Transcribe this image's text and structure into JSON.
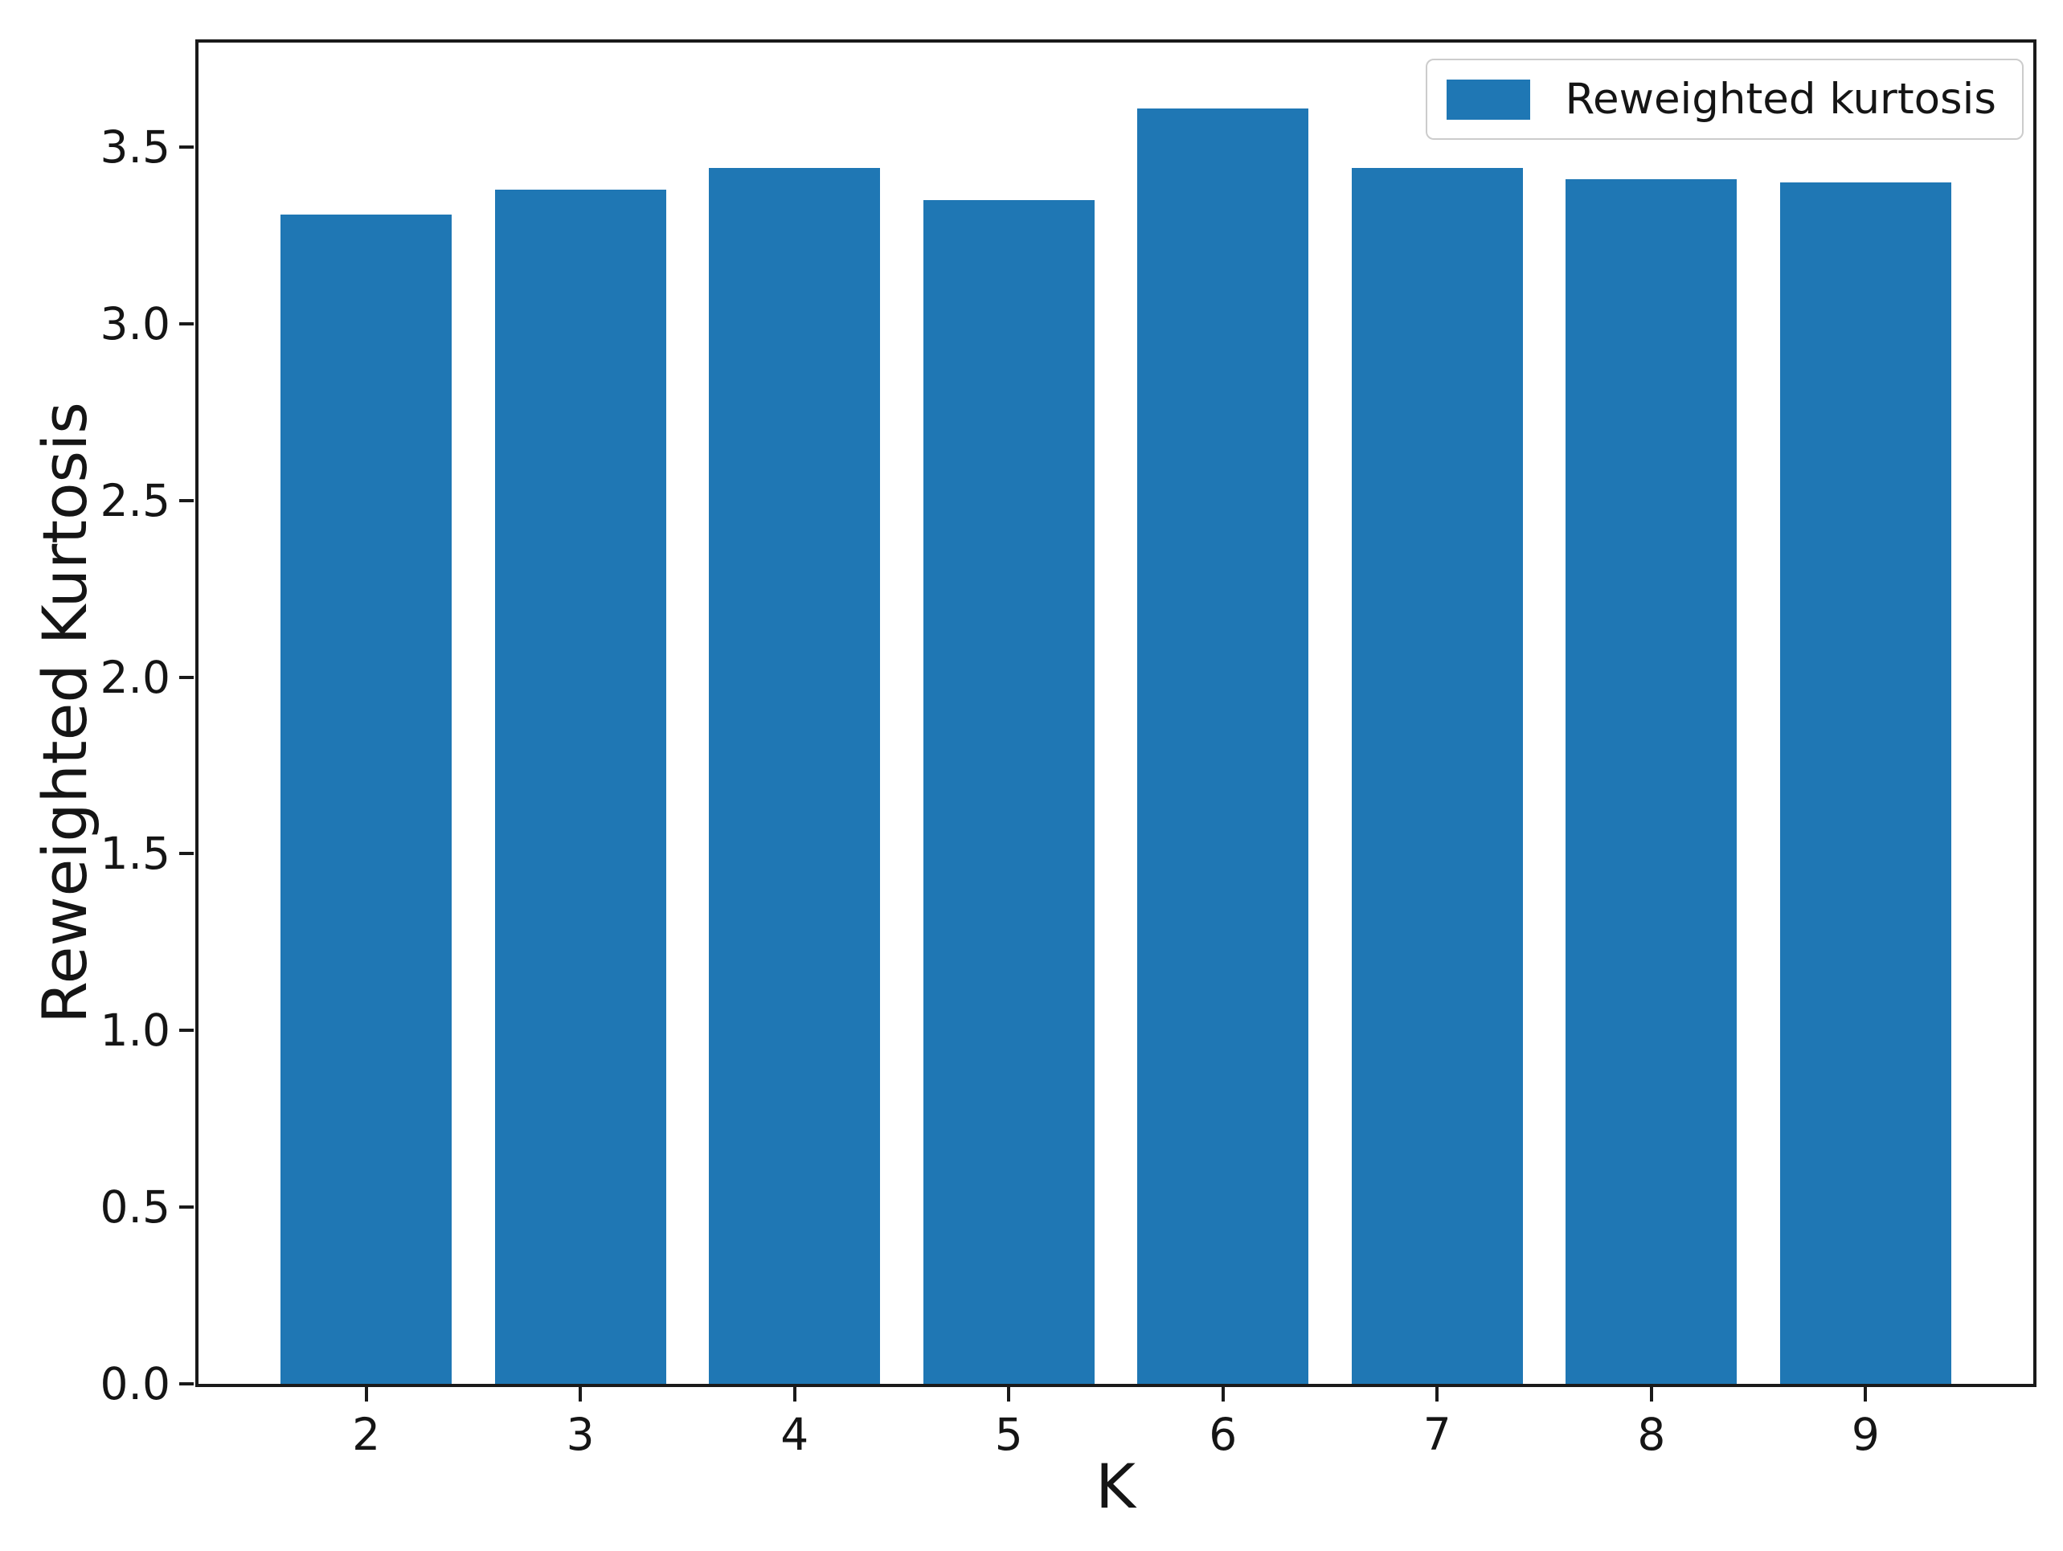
{
  "chart_data": {
    "type": "bar",
    "title": "",
    "xlabel": "K",
    "ylabel": "Reweighted Kurtosis",
    "categories": [
      "2",
      "3",
      "4",
      "5",
      "6",
      "7",
      "8",
      "9"
    ],
    "x_positions": [
      2,
      3,
      4,
      5,
      6,
      7,
      8,
      9
    ],
    "values": [
      3.31,
      3.38,
      3.44,
      3.35,
      3.61,
      3.44,
      3.41,
      3.4
    ],
    "series_name": "Reweighted kurtosis",
    "bar_width_units": 0.8,
    "bar_color": "#1f77b4",
    "xlim": [
      1.21,
      9.79
    ],
    "ylim": [
      0,
      3.8
    ],
    "ytick_values": [
      0,
      0.5,
      1,
      1.5,
      2,
      2.5,
      3,
      3.5
    ],
    "ytick_labels": [
      "0.0",
      "0.5",
      "1.0",
      "1.5",
      "2.0",
      "2.5",
      "3.0",
      "3.5"
    ],
    "grid": false,
    "legend": {
      "label": "Reweighted kurtosis",
      "position": "upper right"
    }
  }
}
